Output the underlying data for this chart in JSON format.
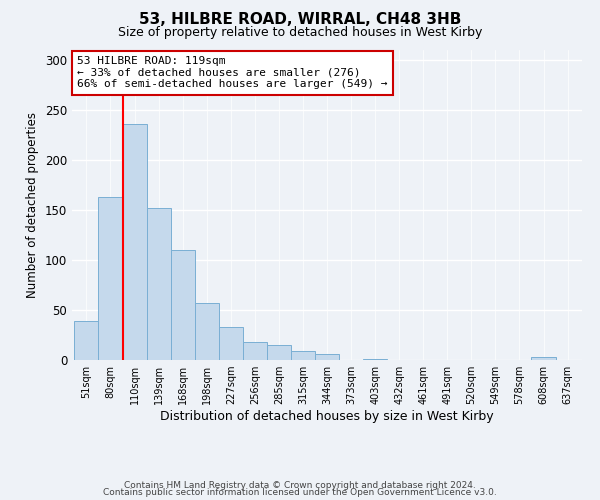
{
  "title1": "53, HILBRE ROAD, WIRRAL, CH48 3HB",
  "title2": "Size of property relative to detached houses in West Kirby",
  "xlabel": "Distribution of detached houses by size in West Kirby",
  "ylabel": "Number of detached properties",
  "bar_color": "#c5d9ec",
  "bar_edge_color": "#7aafd4",
  "bin_labels": [
    "51sqm",
    "80sqm",
    "110sqm",
    "139sqm",
    "168sqm",
    "198sqm",
    "227sqm",
    "256sqm",
    "285sqm",
    "315sqm",
    "344sqm",
    "373sqm",
    "403sqm",
    "432sqm",
    "461sqm",
    "491sqm",
    "520sqm",
    "549sqm",
    "578sqm",
    "608sqm",
    "637sqm"
  ],
  "bar_heights": [
    39,
    163,
    236,
    152,
    110,
    57,
    33,
    18,
    15,
    9,
    6,
    0,
    1,
    0,
    0,
    0,
    0,
    0,
    0,
    3,
    0
  ],
  "red_line_bar_index": 2,
  "ylim": [
    0,
    310
  ],
  "yticks": [
    0,
    50,
    100,
    150,
    200,
    250,
    300
  ],
  "annotation_title": "53 HILBRE ROAD: 119sqm",
  "annotation_line1": "← 33% of detached houses are smaller (276)",
  "annotation_line2": "66% of semi-detached houses are larger (549) →",
  "footer1": "Contains HM Land Registry data © Crown copyright and database right 2024.",
  "footer2": "Contains public sector information licensed under the Open Government Licence v3.0.",
  "background_color": "#eef2f7",
  "grid_color": "#ffffff"
}
